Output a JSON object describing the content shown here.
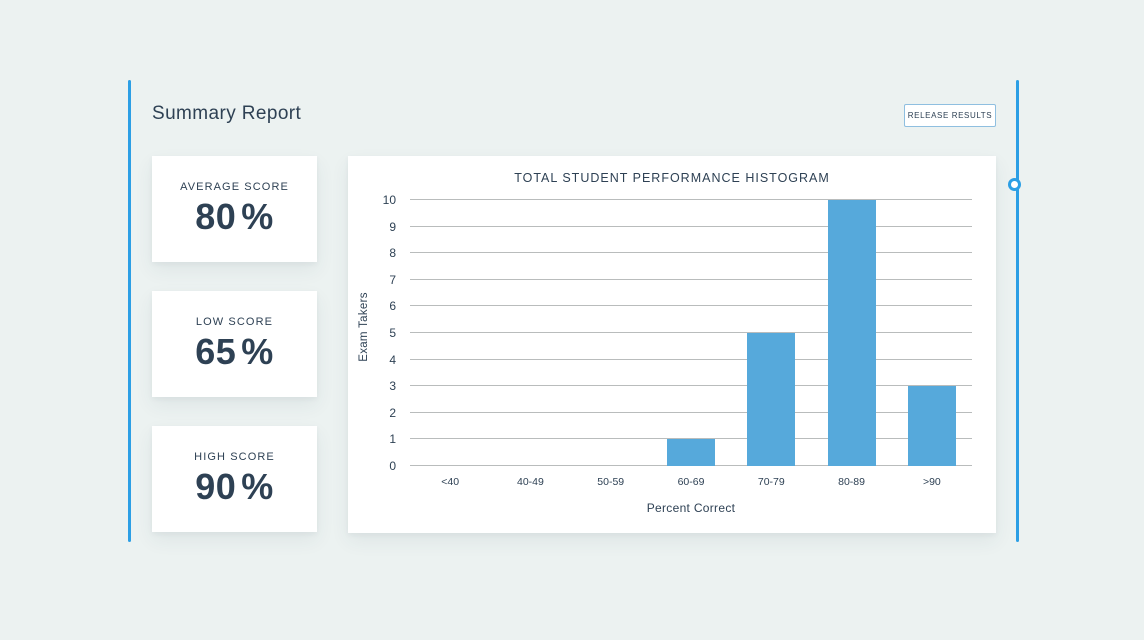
{
  "page": {
    "title": "Summary Report"
  },
  "header": {
    "release_button_label": "RELEASE RESULTS"
  },
  "stats": [
    {
      "label": "AVERAGE SCORE",
      "value": "80",
      "unit": "%"
    },
    {
      "label": "LOW SCORE",
      "value": "65",
      "unit": "%"
    },
    {
      "label": "HIGH SCORE",
      "value": "90",
      "unit": "%"
    }
  ],
  "chart_data": {
    "type": "bar",
    "title": "TOTAL STUDENT PERFORMANCE HISTOGRAM",
    "categories": [
      "<40",
      "40-49",
      "50-59",
      "60-69",
      "70-79",
      "80-89",
      ">90"
    ],
    "values": [
      0,
      0,
      0,
      1,
      5,
      10,
      3
    ],
    "xlabel": "Percent Correct",
    "ylabel": "Exam Takers",
    "ylim": [
      0,
      10
    ],
    "ytick_step": 1,
    "grid": true,
    "legend": "none",
    "bar_color": "#56A9DB"
  },
  "colors": {
    "background": "#ECF2F1",
    "accent_blue": "#2C9FE5",
    "bar_blue": "#56A9DB",
    "text_dark": "#2E4154",
    "grid_line": "#B9BCBC",
    "button_border": "#8FBFE0",
    "card_bg": "#FFFFFF"
  }
}
